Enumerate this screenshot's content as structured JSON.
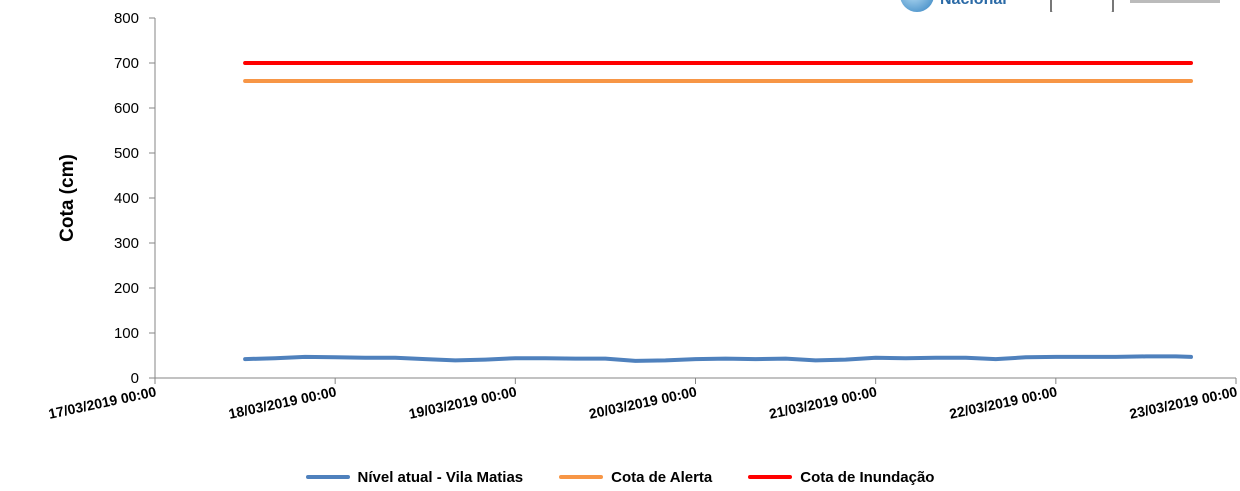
{
  "chart_data": {
    "type": "line",
    "title": "",
    "ylabel": "Cota (cm)",
    "xlabel": "",
    "ylim": [
      0,
      800
    ],
    "yticks": [
      "0",
      "100",
      "200",
      "300",
      "400",
      "500",
      "600",
      "700",
      "800"
    ],
    "xlim": [
      "17/03/2019 00:00",
      "23/03/2019 00:00"
    ],
    "xticks": [
      "17/03/2019 00:00",
      "18/03/2019 00:00",
      "19/03/2019 00:00",
      "20/03/2019 00:00",
      "21/03/2019 00:00",
      "22/03/2019 00:00",
      "23/03/2019 00:00"
    ],
    "legend_position": "bottom",
    "grid": false,
    "series": [
      {
        "name": "Nível atual - Vila Matias",
        "color": "#4f81bd",
        "points": [
          [
            "17/03/2019 12:00",
            42
          ],
          [
            "17/03/2019 16:00",
            44
          ],
          [
            "17/03/2019 20:00",
            47
          ],
          [
            "18/03/2019 00:00",
            46
          ],
          [
            "18/03/2019 04:00",
            45
          ],
          [
            "18/03/2019 08:00",
            45
          ],
          [
            "18/03/2019 12:00",
            42
          ],
          [
            "18/03/2019 16:00",
            39
          ],
          [
            "18/03/2019 20:00",
            41
          ],
          [
            "19/03/2019 00:00",
            44
          ],
          [
            "19/03/2019 04:00",
            44
          ],
          [
            "19/03/2019 08:00",
            43
          ],
          [
            "19/03/2019 12:00",
            43
          ],
          [
            "19/03/2019 16:00",
            38
          ],
          [
            "19/03/2019 20:00",
            39
          ],
          [
            "20/03/2019 00:00",
            42
          ],
          [
            "20/03/2019 04:00",
            43
          ],
          [
            "20/03/2019 08:00",
            42
          ],
          [
            "20/03/2019 12:00",
            43
          ],
          [
            "20/03/2019 16:00",
            39
          ],
          [
            "20/03/2019 20:00",
            41
          ],
          [
            "21/03/2019 00:00",
            45
          ],
          [
            "21/03/2019 04:00",
            44
          ],
          [
            "21/03/2019 08:00",
            45
          ],
          [
            "21/03/2019 12:00",
            45
          ],
          [
            "21/03/2019 16:00",
            42
          ],
          [
            "21/03/2019 20:00",
            46
          ],
          [
            "22/03/2019 00:00",
            47
          ],
          [
            "22/03/2019 04:00",
            47
          ],
          [
            "22/03/2019 08:00",
            47
          ],
          [
            "22/03/2019 12:00",
            48
          ],
          [
            "22/03/2019 16:00",
            48
          ],
          [
            "22/03/2019 18:00",
            47
          ]
        ]
      },
      {
        "name": "Cota de Alerta",
        "color": "#f79646",
        "points": [
          [
            "17/03/2019 12:00",
            660
          ],
          [
            "22/03/2019 18:00",
            660
          ]
        ]
      },
      {
        "name": "Cota de Inundação",
        "color": "#ff0000",
        "points": [
          [
            "17/03/2019 12:00",
            700
          ],
          [
            "22/03/2019 18:00",
            700
          ]
        ]
      }
    ]
  },
  "logo": {
    "text": "Nacional"
  }
}
